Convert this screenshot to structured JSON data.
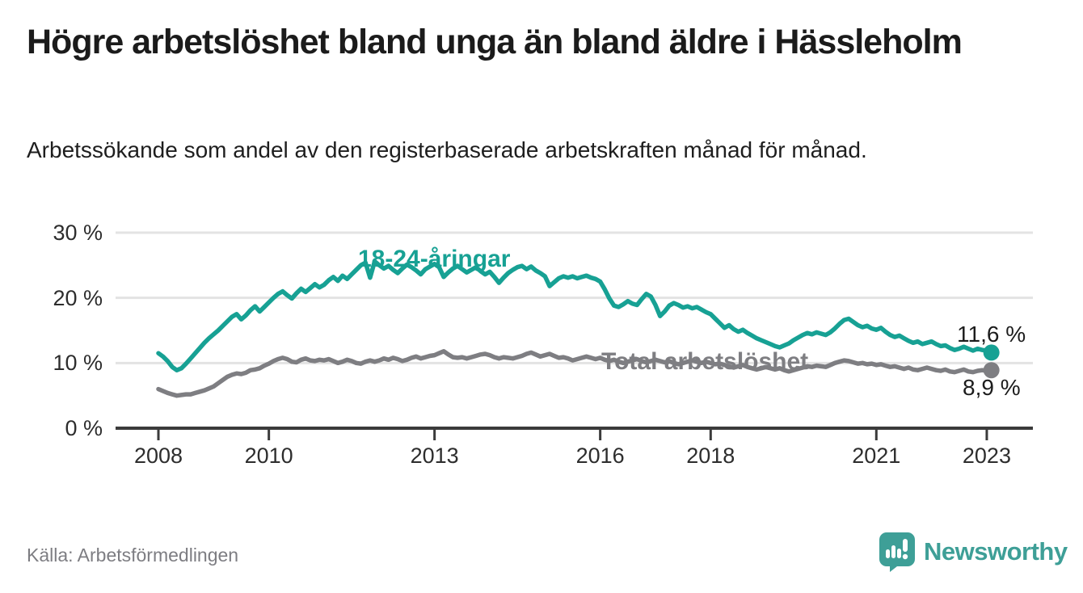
{
  "header": {
    "title": "Högre arbetslöshet bland unga än bland äldre i Hässleholm",
    "subtitle": "Arbetssökande som andel av den registerbaserade arbetskraften månad för månad."
  },
  "footer": {
    "source": "Källa: Arbetsförmedlingen",
    "logo_text": "Newsworthy",
    "logo_icon": "newsworthy-speech-bubble-barchart-icon"
  },
  "colors": {
    "young_line": "#17A194",
    "total_line": "#7E7E82",
    "gridline": "#E3E3E3",
    "axis": "#3B3B3B",
    "text": "#1B1B1B",
    "muted_text": "#7D7D82",
    "logo": "#3E9F97",
    "background": "#FFFFFF"
  },
  "chart_data": {
    "type": "line",
    "unit": "%",
    "x_interval": "monthly",
    "x_range": [
      "2008-01",
      "2023-02"
    ],
    "x_start_year": 2008,
    "ylim": [
      0,
      30
    ],
    "grid": true,
    "legend_position": "inline-labels",
    "x_ticks": [
      {
        "value": 2008,
        "label": "2008"
      },
      {
        "value": 2010,
        "label": "2010"
      },
      {
        "value": 2013,
        "label": "2013"
      },
      {
        "value": 2016,
        "label": "2016"
      },
      {
        "value": 2018,
        "label": "2018"
      },
      {
        "value": 2021,
        "label": "2021"
      },
      {
        "value": 2023,
        "label": "2023"
      }
    ],
    "y_ticks": [
      {
        "value": 0,
        "label": "0 %"
      },
      {
        "value": 10,
        "label": "10 %"
      },
      {
        "value": 20,
        "label": "20 %"
      },
      {
        "value": 30,
        "label": "30 %"
      }
    ],
    "series": [
      {
        "name": "18-24-åringar",
        "color": "#17A194",
        "end_label": "11,6 %",
        "last_value": 11.6,
        "values": [
          11.5,
          11.0,
          10.3,
          9.4,
          8.9,
          9.2,
          9.9,
          10.7,
          11.5,
          12.3,
          13.1,
          13.8,
          14.4,
          15.0,
          15.7,
          16.4,
          17.1,
          17.5,
          16.7,
          17.3,
          18.1,
          18.7,
          17.9,
          18.6,
          19.3,
          20.0,
          20.6,
          21.0,
          20.4,
          19.9,
          20.7,
          21.4,
          20.9,
          21.5,
          22.1,
          21.6,
          22.0,
          22.7,
          23.2,
          22.6,
          23.4,
          22.9,
          23.6,
          24.3,
          25.0,
          25.4,
          23.1,
          25.6,
          25.0,
          24.5,
          24.9,
          24.3,
          23.8,
          24.5,
          25.1,
          24.7,
          24.2,
          23.6,
          24.4,
          24.8,
          25.2,
          24.7,
          23.2,
          23.9,
          24.5,
          24.9,
          24.4,
          23.9,
          24.3,
          24.7,
          24.1,
          23.6,
          24.0,
          23.2,
          22.3,
          23.1,
          23.8,
          24.3,
          24.7,
          24.9,
          24.4,
          24.8,
          24.2,
          23.8,
          23.3,
          21.8,
          22.4,
          23.0,
          23.3,
          23.1,
          23.3,
          23.0,
          23.2,
          23.4,
          23.1,
          22.9,
          22.5,
          21.3,
          19.9,
          18.8,
          18.6,
          19.0,
          19.5,
          19.1,
          18.9,
          19.8,
          20.6,
          20.2,
          18.9,
          17.2,
          17.9,
          18.8,
          19.2,
          18.9,
          18.5,
          18.7,
          18.4,
          18.6,
          18.2,
          17.8,
          17.5,
          16.8,
          16.1,
          15.4,
          15.8,
          15.2,
          14.8,
          15.1,
          14.6,
          14.2,
          13.8,
          13.5,
          13.2,
          12.9,
          12.6,
          12.4,
          12.7,
          13.0,
          13.5,
          13.9,
          14.3,
          14.6,
          14.4,
          14.7,
          14.5,
          14.3,
          14.7,
          15.3,
          16.0,
          16.6,
          16.8,
          16.3,
          15.8,
          15.5,
          15.7,
          15.3,
          15.1,
          15.4,
          14.8,
          14.3,
          14.0,
          14.2,
          13.8,
          13.4,
          13.1,
          13.3,
          12.9,
          13.1,
          13.3,
          12.9,
          12.6,
          12.7,
          12.3,
          12.0,
          12.2,
          12.5,
          12.2,
          11.9,
          12.2,
          12.0,
          11.9,
          11.6
        ]
      },
      {
        "name": "Total arbetslöshet",
        "color": "#7E7E82",
        "end_label": "8,9 %",
        "last_value": 8.9,
        "values": [
          6.0,
          5.7,
          5.4,
          5.2,
          5.0,
          5.1,
          5.2,
          5.2,
          5.4,
          5.6,
          5.8,
          6.1,
          6.4,
          6.9,
          7.4,
          7.9,
          8.2,
          8.4,
          8.3,
          8.5,
          8.9,
          9.0,
          9.2,
          9.6,
          9.9,
          10.3,
          10.6,
          10.8,
          10.6,
          10.2,
          10.1,
          10.5,
          10.7,
          10.4,
          10.3,
          10.5,
          10.4,
          10.6,
          10.3,
          10.0,
          10.2,
          10.5,
          10.3,
          10.0,
          9.9,
          10.2,
          10.4,
          10.2,
          10.4,
          10.7,
          10.5,
          10.8,
          10.6,
          10.3,
          10.5,
          10.8,
          11.0,
          10.7,
          10.9,
          11.1,
          11.2,
          11.5,
          11.8,
          11.3,
          10.9,
          10.8,
          10.9,
          10.7,
          10.9,
          11.1,
          11.3,
          11.4,
          11.2,
          10.9,
          10.7,
          10.9,
          10.8,
          10.7,
          10.9,
          11.1,
          11.4,
          11.6,
          11.3,
          11.0,
          11.2,
          11.4,
          11.1,
          10.8,
          10.9,
          10.7,
          10.4,
          10.6,
          10.8,
          11.0,
          10.8,
          10.6,
          10.8,
          10.5,
          10.3,
          10.5,
          10.2,
          10.0,
          10.2,
          10.4,
          10.6,
          10.3,
          10.1,
          10.3,
          10.5,
          10.3,
          10.1,
          10.3,
          10.0,
          9.8,
          10.0,
          10.2,
          10.4,
          10.2,
          10.0,
          10.2,
          10.0,
          9.8,
          9.9,
          9.7,
          9.5,
          9.3,
          9.5,
          9.7,
          9.4,
          9.2,
          9.0,
          9.2,
          9.4,
          9.2,
          9.0,
          9.2,
          8.9,
          8.7,
          8.9,
          9.1,
          9.3,
          9.5,
          9.4,
          9.6,
          9.5,
          9.4,
          9.7,
          10.0,
          10.2,
          10.4,
          10.3,
          10.1,
          9.9,
          10.0,
          9.8,
          9.9,
          9.7,
          9.8,
          9.6,
          9.4,
          9.5,
          9.3,
          9.1,
          9.3,
          9.0,
          8.9,
          9.1,
          9.3,
          9.1,
          8.9,
          8.8,
          9.0,
          8.7,
          8.6,
          8.8,
          9.0,
          8.7,
          8.6,
          8.8,
          8.9,
          8.8,
          8.9
        ]
      }
    ]
  }
}
